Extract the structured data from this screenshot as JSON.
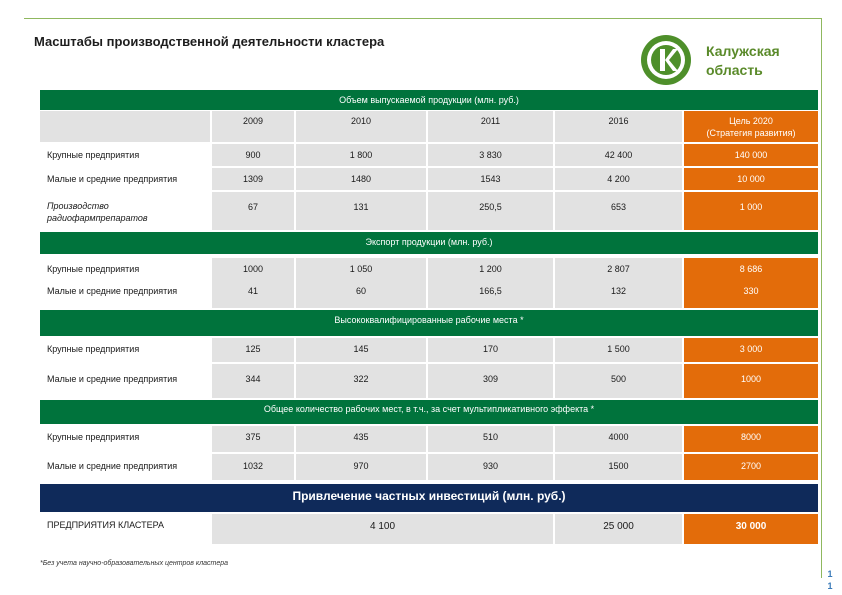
{
  "title": "Масштабы производственной деятельности кластера",
  "region": {
    "line1": "Калужская",
    "line2": "область"
  },
  "header": {
    "years": [
      "2009",
      "2010",
      "2011",
      "2016"
    ],
    "goal_line1": "Цель 2020",
    "goal_line2": "(Стратегия развития)"
  },
  "sections": [
    {
      "title": "Объем выпускаемой продукции (млн. руб.)",
      "rows": [
        {
          "label": "Крупные предприятия",
          "values": [
            "900",
            "1 800",
            "3 830",
            "42 400",
            "140 000"
          ]
        },
        {
          "label": "Малые и средние предприятия",
          "values": [
            "1309",
            "1480",
            "1543",
            "4 200",
            "10 000"
          ]
        },
        {
          "label_line1": "Производство",
          "label_line2": "радиофармпрепаратов",
          "values": [
            "67",
            "131",
            "250,5",
            "653",
            "1 000"
          ]
        }
      ]
    },
    {
      "title": "Экспорт продукции (млн. руб.)",
      "rows": [
        {
          "label": "Крупные предприятия",
          "values": [
            "1000",
            "1 050",
            "1 200",
            "2 807",
            "8 686"
          ]
        },
        {
          "label": "Малые и средние предприятия",
          "values": [
            "41",
            "60",
            "166,5",
            "132",
            "330"
          ]
        }
      ]
    },
    {
      "title": "Высококвалифицированные рабочие места *",
      "rows": [
        {
          "label": "Крупные предприятия",
          "values": [
            "125",
            "145",
            "170",
            "1 500",
            "3 000"
          ]
        },
        {
          "label": "Малые и средние предприятия",
          "values": [
            "344",
            "322",
            "309",
            "500",
            "1000"
          ]
        }
      ]
    },
    {
      "title": "Общее количество рабочих мест, в т.ч., за счет мультипликативного эффекта *",
      "rows": [
        {
          "label": "Крупные предприятия",
          "values": [
            "375",
            "435",
            "510",
            "4000",
            "8000"
          ]
        },
        {
          "label": "Малые и средние предприятия",
          "values": [
            "1032",
            "970",
            "930",
            "1500",
            "2700"
          ]
        }
      ]
    },
    {
      "title": "Привлечение частных инвестиций (млн. руб.)",
      "rows": [
        {
          "label": "ПРЕДПРИЯТИЯ КЛАСТЕРА",
          "merged_value": "4 100",
          "value_2016": "25 000",
          "goal": "30 000"
        }
      ]
    }
  ],
  "footnote": "*Без учета научно-образовательных центров кластера",
  "page_number": [
    "1",
    "1"
  ],
  "colors": {
    "section_green": "#00733c",
    "section_navy": "#0f2a5a",
    "goal_orange": "#e36c0a",
    "cell_gray": "#e2e2e2",
    "brand_green": "#5a8a2a"
  }
}
